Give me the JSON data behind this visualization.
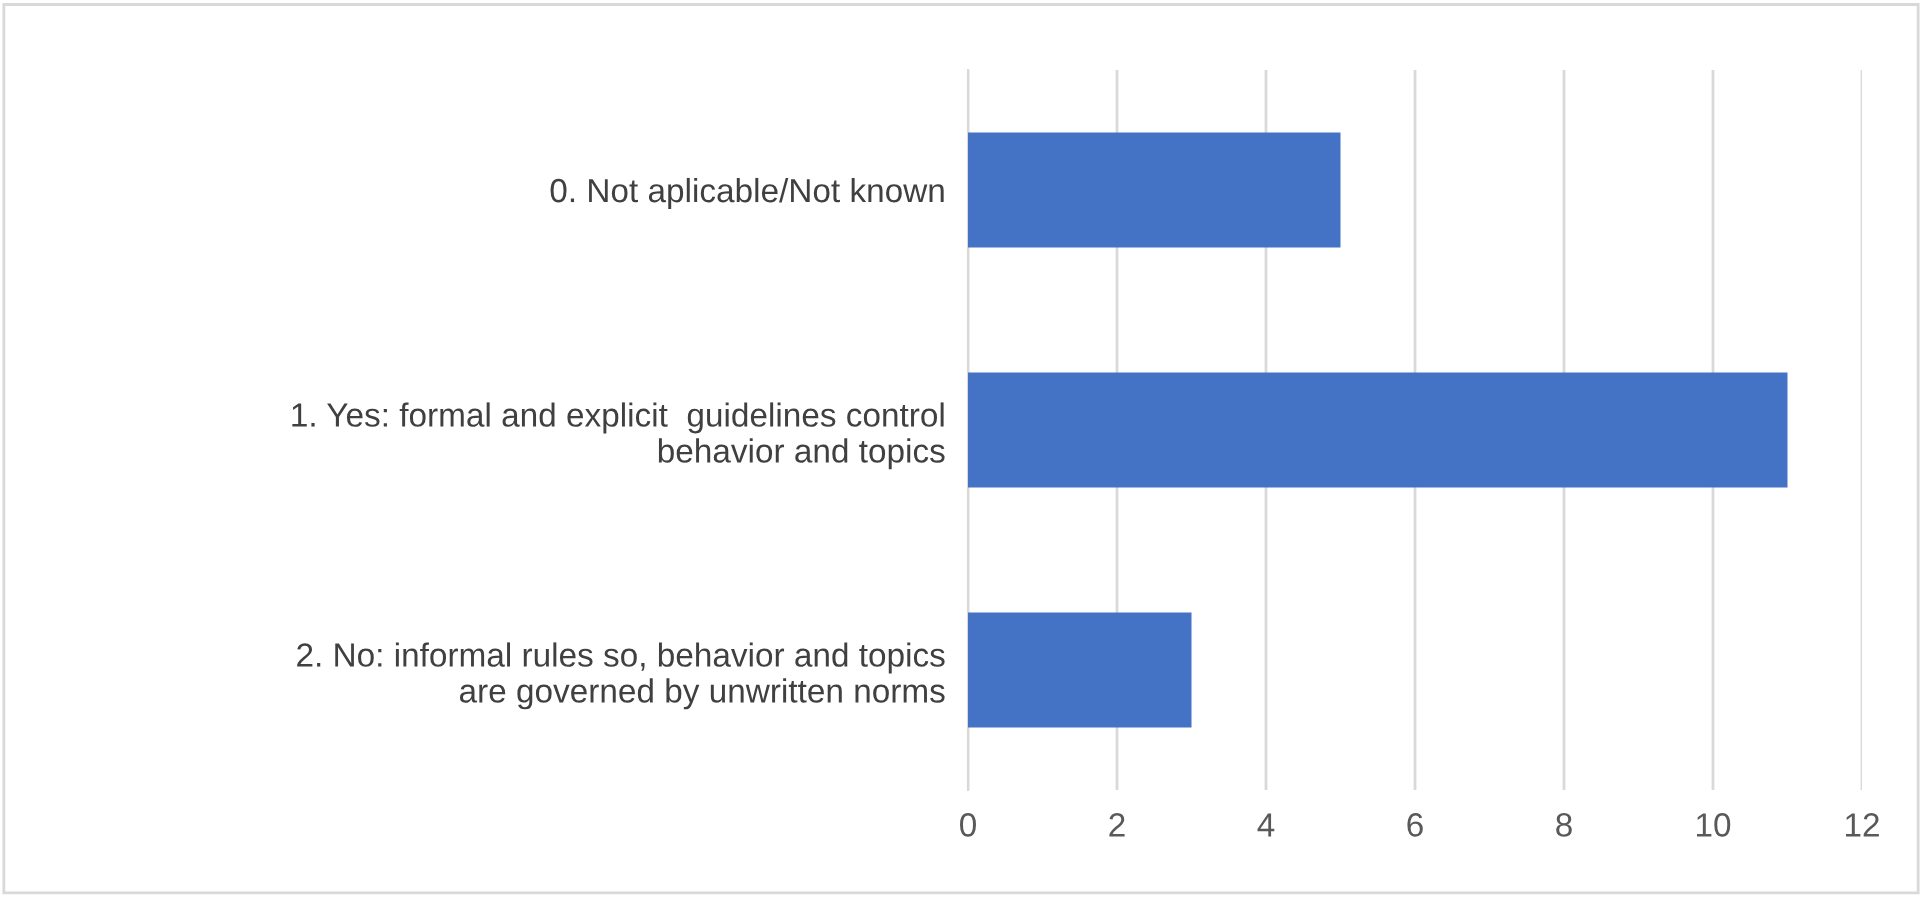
{
  "chart_data": {
    "type": "bar",
    "orientation": "horizontal",
    "categories": [
      "0. Not aplicable/Not known",
      "1. Yes: formal and explicit  guidelines control\nbehavior and topics",
      "2. No: informal rules so, behavior and topics\nare governed by unwritten norms"
    ],
    "values": [
      5,
      11,
      3
    ],
    "color": "#4472c4",
    "xlim": [
      0,
      12
    ],
    "xticks": [
      0,
      2,
      4,
      6,
      8,
      10,
      12
    ],
    "grid": "x"
  }
}
